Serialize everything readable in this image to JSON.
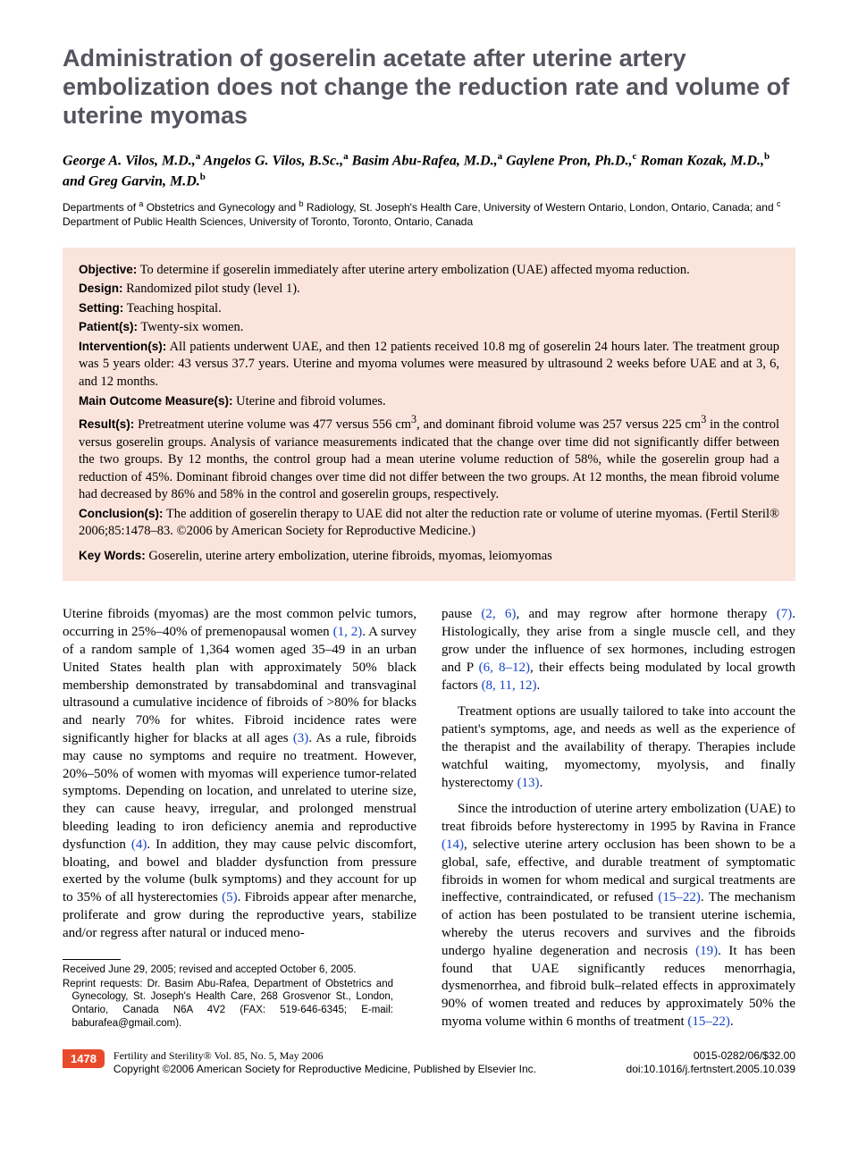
{
  "title": "Administration of goserelin acetate after uterine artery embolization does not change the reduction rate and volume of uterine myomas",
  "authors_html": "George A. Vilos, M.D.,<sup>a</sup> Angelos G. Vilos, B.Sc.,<sup>a</sup> Basim Abu-Rafea, M.D.,<sup>a</sup> Gaylene Pron, Ph.D.,<sup>c</sup> Roman Kozak, M.D.,<sup>b</sup> and Greg Garvin, M.D.<sup>b</sup>",
  "affiliations_html": "Departments of <sup>a</sup> Obstetrics and Gynecology and <sup>b</sup> Radiology, St. Joseph's Health Care, University of Western Ontario, London, Ontario, Canada; and <sup>c</sup> Department of Public Health Sciences, University of Toronto, Toronto, Ontario, Canada",
  "abstract": {
    "objective": {
      "label": "Objective:",
      "text": " To determine if goserelin immediately after uterine artery embolization (UAE) affected myoma reduction."
    },
    "design": {
      "label": "Design:",
      "text": " Randomized pilot study (level 1)."
    },
    "setting": {
      "label": "Setting:",
      "text": " Teaching hospital."
    },
    "patients": {
      "label": "Patient(s):",
      "text": " Twenty-six women."
    },
    "interventions": {
      "label": "Intervention(s):",
      "text": " All patients underwent UAE, and then 12 patients received 10.8 mg of goserelin 24 hours later. The treatment group was 5 years older: 43 versus 37.7 years. Uterine and myoma volumes were measured by ultrasound 2 weeks before UAE and at 3, 6, and 12 months."
    },
    "outcome": {
      "label": "Main Outcome Measure(s):",
      "text": " Uterine and fibroid volumes."
    },
    "results": {
      "label": "Result(s):",
      "text_html": " Pretreatment uterine volume was 477 versus 556 cm<sup>3</sup>, and dominant fibroid volume was 257 versus 225 cm<sup>3</sup> in the control versus goserelin groups. Analysis of variance measurements indicated that the change over time did not significantly differ between the two groups. By 12 months, the control group had a mean uterine volume reduction of 58%, while the goserelin group had a reduction of 45%. Dominant fibroid changes over time did not differ between the two groups. At 12 months, the mean fibroid volume had decreased by 86% and 58% in the control and goserelin groups, respectively."
    },
    "conclusions": {
      "label": "Conclusion(s):",
      "text": " The addition of goserelin therapy to UAE did not alter the reduction rate or volume of uterine myomas. (Fertil Steril® 2006;85:1478–83. ©2006 by American Society for Reproductive Medicine.)"
    },
    "keywords": {
      "label": "Key Words:",
      "text": " Goserelin, uterine artery embolization, uterine fibroids, myomas, leiomyomas"
    }
  },
  "body": {
    "col1_p1_html": "Uterine fibroids (myomas) are the most common pelvic tumors, occurring in 25%–40% of premenopausal women <span class=\"ref\">(1, 2)</span>. A survey of a random sample of 1,364 women aged 35–49 in an urban United States health plan with approximately 50% black membership demonstrated by transabdominal and transvaginal ultrasound a cumulative incidence of fibroids of >80% for blacks and nearly 70% for whites. Fibroid incidence rates were significantly higher for blacks at all ages <span class=\"ref\">(3)</span>. As a rule, fibroids may cause no symptoms and require no treatment. However, 20%–50% of women with myomas will experience tumor-related symptoms. Depending on location, and unrelated to uterine size, they can cause heavy, irregular, and prolonged menstrual bleeding leading to iron deficiency anemia and reproductive dysfunction <span class=\"ref\">(4)</span>. In addition, they may cause pelvic discomfort, bloating, and bowel and bladder dysfunction from pressure exerted by the volume (bulk symptoms) and they account for up to 35% of all hysterectomies <span class=\"ref\">(5)</span>. Fibroids appear after menarche, proliferate and grow during the reproductive years, stabilize and/or regress after natural or induced meno-",
    "col2_p1_html": "pause <span class=\"ref\">(2, 6)</span>, and may regrow after hormone therapy <span class=\"ref\">(7)</span>. Histologically, they arise from a single muscle cell, and they grow under the influence of sex hormones, including estrogen and P <span class=\"ref\">(6, 8–12)</span>, their effects being modulated by local growth factors <span class=\"ref\">(8, 11, 12)</span>.",
    "col2_p2_html": "Treatment options are usually tailored to take into account the patient's symptoms, age, and needs as well as the experience of the therapist and the availability of therapy. Therapies include watchful waiting, myomectomy, myolysis, and finally hysterectomy <span class=\"ref\">(13)</span>.",
    "col2_p3_html": "Since the introduction of uterine artery embolization (UAE) to treat fibroids before hysterectomy in 1995 by Ravina in France <span class=\"ref\">(14)</span>, selective uterine artery occlusion has been shown to be a global, safe, effective, and durable treatment of symptomatic fibroids in women for whom medical and surgical treatments are ineffective, contraindicated, or refused <span class=\"ref\">(15–22)</span>. The mechanism of action has been postulated to be transient uterine ischemia, whereby the uterus recovers and survives and the fibroids undergo hyaline degeneration and necrosis <span class=\"ref\">(19)</span>. It has been found that UAE significantly reduces menorrhagia, dysmenorrhea, and fibroid bulk–related effects in approximately 90% of women treated and reduces by approximately 50% the myoma volume within 6 months of treatment <span class=\"ref\">(15–22)</span>."
  },
  "footnotes": {
    "received": "Received June 29, 2005; revised and accepted October 6, 2005.",
    "reprints": "Reprint requests: Dr. Basim Abu-Rafea, Department of Obstetrics and Gynecology, St. Joseph's Health Care, 268 Grosvenor St., London, Ontario, Canada N6A 4V2 (FAX: 519-646-6345; E-mail: baburafea@gmail.com)."
  },
  "footer": {
    "page": "1478",
    "journal": "Fertility and Sterility® Vol. 85, No. 5, May 2006",
    "copyright": "Copyright ©2006 American Society for Reproductive Medicine, Published by Elsevier Inc.",
    "issn": "0015-0282/06/$32.00",
    "doi": "doi:10.1016/j.fertnstert.2005.10.039"
  },
  "colors": {
    "title_color": "#555560",
    "abstract_bg": "#fbe4db",
    "ref_color": "#1744c7",
    "pgnum_bg": "#e84b2c",
    "pgnum_fg": "#ffffff"
  }
}
